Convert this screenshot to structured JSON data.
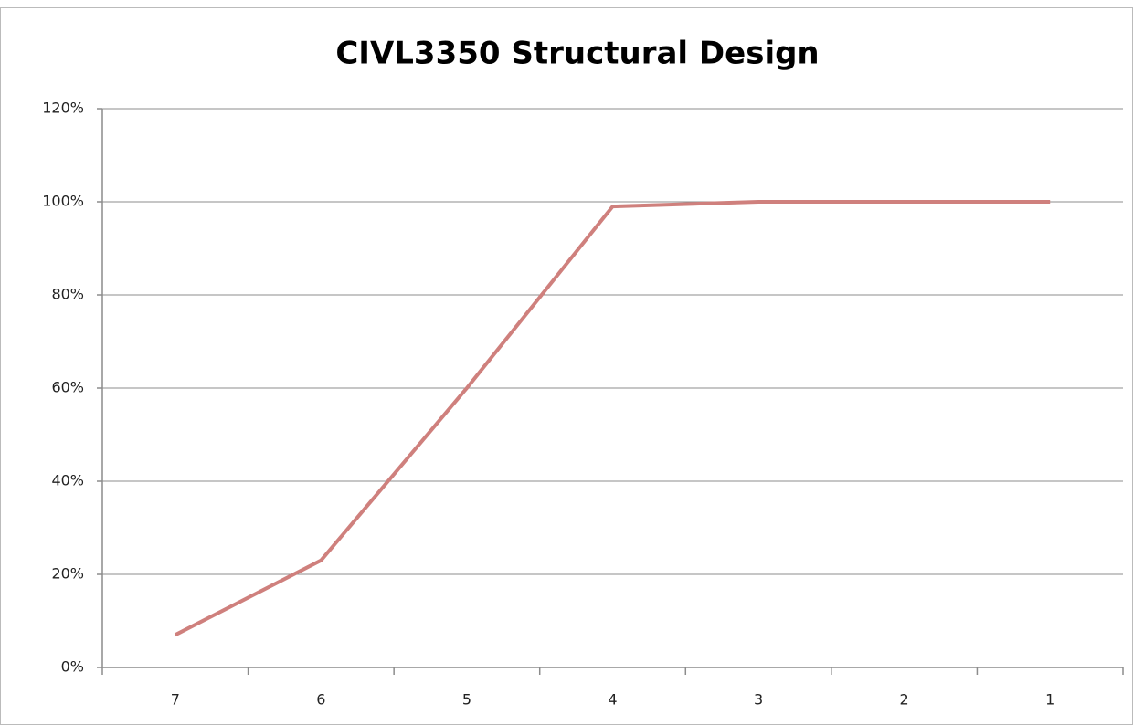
{
  "chart_data": {
    "type": "line",
    "title": "CIVL3350 Structural Design",
    "categories": [
      "7",
      "6",
      "5",
      "4",
      "3",
      "2",
      "1"
    ],
    "values": [
      7,
      23,
      60,
      99,
      100,
      100,
      100
    ],
    "color": "#cf807d",
    "ylim": [
      0,
      120
    ],
    "yticks": [
      {
        "value": 0,
        "label": "0%"
      },
      {
        "value": 20,
        "label": "20%"
      },
      {
        "value": 40,
        "label": "40%"
      },
      {
        "value": 60,
        "label": "60%"
      },
      {
        "value": 80,
        "label": "80%"
      },
      {
        "value": 100,
        "label": "100%"
      },
      {
        "value": 120,
        "label": "120%"
      }
    ],
    "grid": true
  }
}
